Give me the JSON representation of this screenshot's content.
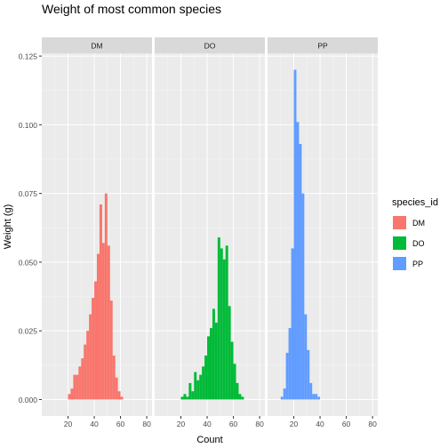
{
  "title": "Weight of most common species",
  "chart_data": {
    "type": "bar",
    "title": "Weight of most common species",
    "xlabel": "Count",
    "ylabel": "Weight (g)",
    "xlim": [
      0,
      84
    ],
    "ylim": [
      -0.006,
      0.126
    ],
    "x_ticks": [
      20,
      40,
      60,
      80
    ],
    "y_ticks": [
      0.0,
      0.025,
      0.05,
      0.075,
      0.1,
      0.125
    ],
    "y_tick_labels": [
      "0.000",
      "0.025",
      "0.050",
      "0.075",
      "0.100",
      "0.125"
    ],
    "bin_width": 2,
    "grid": true,
    "legend": {
      "title": "species_id",
      "placement": "right",
      "entries": [
        {
          "name": "DM",
          "color": "#F8766D"
        },
        {
          "name": "DO",
          "color": "#00BA38"
        },
        {
          "name": "PP",
          "color": "#619CFF"
        }
      ]
    },
    "panels": [
      {
        "name": "DM",
        "color": "#F8766D",
        "bins_start": 12,
        "values": [
          0.0,
          0.0,
          0.0,
          0.0,
          0.002,
          0.004,
          0.009,
          0.009,
          0.012,
          0.015,
          0.02,
          0.025,
          0.031,
          0.037,
          0.043,
          0.053,
          0.071,
          0.057,
          0.075,
          0.056,
          0.036,
          0.016,
          0.008,
          0.003,
          0.001
        ]
      },
      {
        "name": "DO",
        "color": "#00BA38",
        "bins_start": 10,
        "values": [
          0.0,
          0.0,
          0.0,
          0.0,
          0.0,
          0.001,
          0.002,
          0.001,
          0.006,
          0.003,
          0.01,
          0.007,
          0.009,
          0.012,
          0.016,
          0.023,
          0.026,
          0.033,
          0.028,
          0.059,
          0.055,
          0.051,
          0.056,
          0.034,
          0.021,
          0.013,
          0.006,
          0.002,
          0.001,
          0.0,
          0.0
        ]
      },
      {
        "name": "PP",
        "color": "#619CFF",
        "bins_start": 6,
        "values": [
          0.0,
          0.0,
          0.001,
          0.004,
          0.017,
          0.026,
          0.055,
          0.12,
          0.101,
          0.093,
          0.075,
          0.031,
          0.018,
          0.006,
          0.002,
          0.002,
          0.001
        ]
      }
    ]
  }
}
